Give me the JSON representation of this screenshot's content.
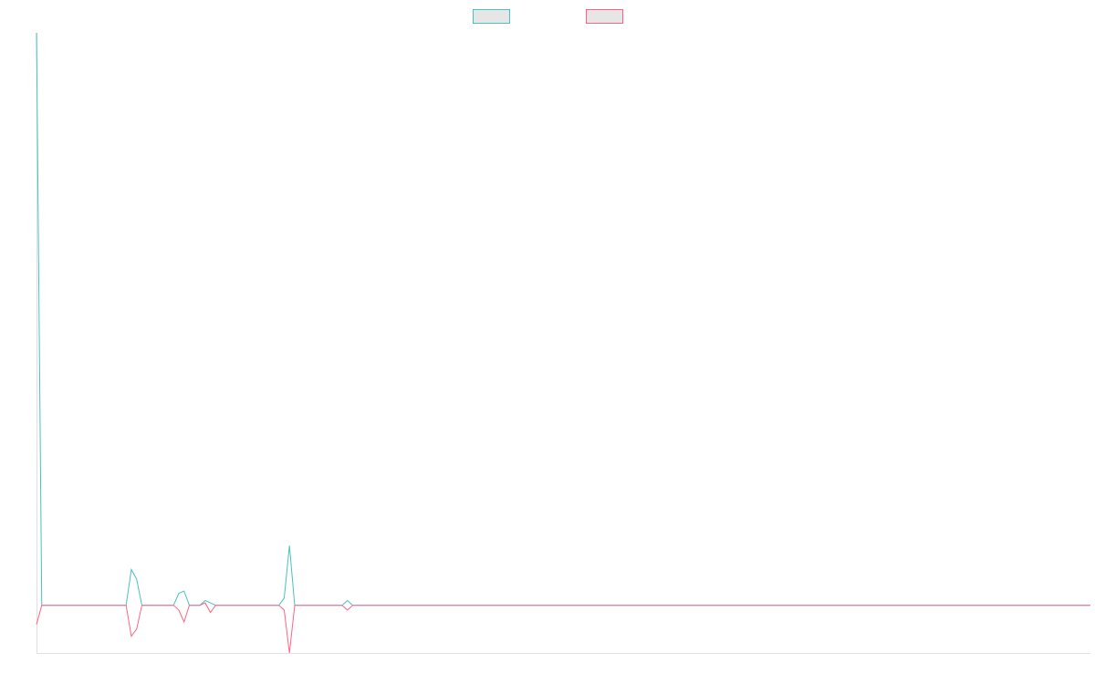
{
  "chart_data": {
    "type": "line",
    "x": [
      0,
      1,
      17,
      18,
      19,
      20,
      26,
      27,
      28,
      29,
      31,
      32,
      33,
      34,
      46,
      47,
      48,
      49,
      58,
      59,
      60,
      200
    ],
    "xlim": [
      0,
      200
    ],
    "ylim": [
      -1,
      12
    ],
    "legend": "top",
    "series": [
      {
        "color": "#4bc0c0",
        "values": [
          12,
          0,
          0,
          0.75,
          0.55,
          0,
          0,
          0.25,
          0.3,
          0,
          0,
          0.1,
          0.05,
          0,
          0,
          0.15,
          1.25,
          0,
          0,
          0.1,
          0,
          0
        ]
      },
      {
        "color": "#ff6384",
        "values": [
          -0.4,
          0,
          0,
          -0.65,
          -0.5,
          0,
          0,
          -0.1,
          -0.35,
          0,
          0,
          0.05,
          -0.15,
          0,
          0,
          -0.1,
          -1,
          0,
          0,
          -0.1,
          0,
          0
        ]
      }
    ]
  }
}
